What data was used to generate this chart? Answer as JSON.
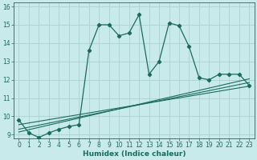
{
  "xlabel": "Humidex (Indice chaleur)",
  "background_color": "#c9eaea",
  "grid_color": "#aed4d4",
  "line_color": "#1a6b5a",
  "xlim": [
    -0.5,
    23.5
  ],
  "ylim": [
    8.8,
    16.2
  ],
  "yticks": [
    9,
    10,
    11,
    12,
    13,
    14,
    15,
    16
  ],
  "xticks": [
    0,
    1,
    2,
    3,
    4,
    5,
    6,
    7,
    8,
    9,
    10,
    11,
    12,
    13,
    14,
    15,
    16,
    17,
    18,
    19,
    20,
    21,
    22,
    23
  ],
  "main_x": [
    0,
    1,
    2,
    3,
    4,
    5,
    6,
    7,
    8,
    9,
    10,
    11,
    12,
    13,
    14,
    15,
    16,
    17,
    18,
    19,
    20,
    21,
    22,
    23
  ],
  "main_y": [
    9.8,
    9.1,
    8.85,
    9.1,
    9.3,
    9.45,
    9.55,
    13.6,
    15.0,
    15.0,
    14.4,
    14.55,
    15.55,
    12.3,
    13.0,
    15.1,
    14.95,
    13.8,
    12.1,
    12.0,
    12.3,
    12.3,
    12.3,
    11.7
  ],
  "line1_x": [
    0,
    23
  ],
  "line1_y": [
    9.15,
    12.05
  ],
  "line2_x": [
    0,
    23
  ],
  "line2_y": [
    9.3,
    11.85
  ],
  "line3_x": [
    0,
    23
  ],
  "line3_y": [
    9.55,
    11.65
  ]
}
